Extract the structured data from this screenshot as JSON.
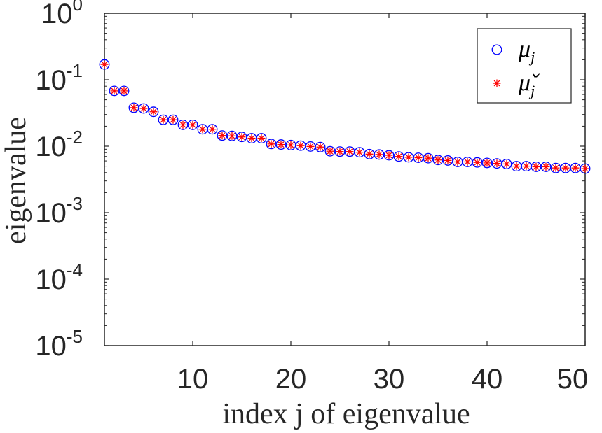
{
  "chart_data": {
    "type": "scatter",
    "title": "",
    "xlabel": "index j of eigenvalue",
    "ylabel": "eigenvalue",
    "xlim": [
      1,
      50
    ],
    "ylim": [
      1e-05,
      1
    ],
    "yscale": "log",
    "grid": false,
    "legend_position": "top-right",
    "x_ticks": [
      10,
      20,
      30,
      40,
      50
    ],
    "y_ticks": [
      {
        "base": "10",
        "exp": "0"
      },
      {
        "base": "10",
        "exp": "-1"
      },
      {
        "base": "10",
        "exp": "-2"
      },
      {
        "base": "10",
        "exp": "-3"
      },
      {
        "base": "10",
        "exp": "-4"
      },
      {
        "base": "10",
        "exp": "-5"
      }
    ],
    "x": [
      1,
      2,
      3,
      4,
      5,
      6,
      7,
      8,
      9,
      10,
      11,
      12,
      13,
      14,
      15,
      16,
      17,
      18,
      19,
      20,
      21,
      22,
      23,
      24,
      25,
      26,
      27,
      28,
      29,
      30,
      31,
      32,
      33,
      34,
      35,
      36,
      37,
      38,
      39,
      40,
      41,
      42,
      43,
      44,
      45,
      46,
      47,
      48,
      49,
      50
    ],
    "series": [
      {
        "name": "μ_j",
        "legend_symbol": "μ",
        "legend_sub": "j",
        "marker": "circle",
        "color": "#0000ff",
        "values": [
          0.17,
          0.068,
          0.068,
          0.038,
          0.037,
          0.033,
          0.025,
          0.025,
          0.021,
          0.021,
          0.018,
          0.018,
          0.0145,
          0.0143,
          0.0138,
          0.0132,
          0.0132,
          0.0108,
          0.0106,
          0.0104,
          0.0102,
          0.0099,
          0.0097,
          0.0084,
          0.0083,
          0.0083,
          0.0081,
          0.0076,
          0.0075,
          0.0073,
          0.007,
          0.0068,
          0.0067,
          0.0066,
          0.0062,
          0.0061,
          0.0058,
          0.0058,
          0.0057,
          0.0056,
          0.0055,
          0.0054,
          0.005,
          0.005,
          0.0049,
          0.0049,
          0.0047,
          0.0047,
          0.0047,
          0.0046
        ]
      },
      {
        "name": "μ̌_j",
        "legend_symbol": "μ̌",
        "legend_sub": "j",
        "marker": "asterisk",
        "color": "#ff0000",
        "values": [
          0.17,
          0.068,
          0.068,
          0.038,
          0.037,
          0.033,
          0.025,
          0.025,
          0.021,
          0.021,
          0.018,
          0.018,
          0.0145,
          0.0143,
          0.0138,
          0.0132,
          0.0132,
          0.0108,
          0.0106,
          0.0104,
          0.0102,
          0.0099,
          0.0097,
          0.0084,
          0.0083,
          0.0083,
          0.0081,
          0.0076,
          0.0075,
          0.0073,
          0.007,
          0.0068,
          0.0067,
          0.0066,
          0.0062,
          0.0061,
          0.0058,
          0.0058,
          0.0057,
          0.0056,
          0.0055,
          0.0054,
          0.005,
          0.005,
          0.0049,
          0.0049,
          0.0047,
          0.0047,
          0.0047,
          0.0046
        ]
      }
    ]
  }
}
